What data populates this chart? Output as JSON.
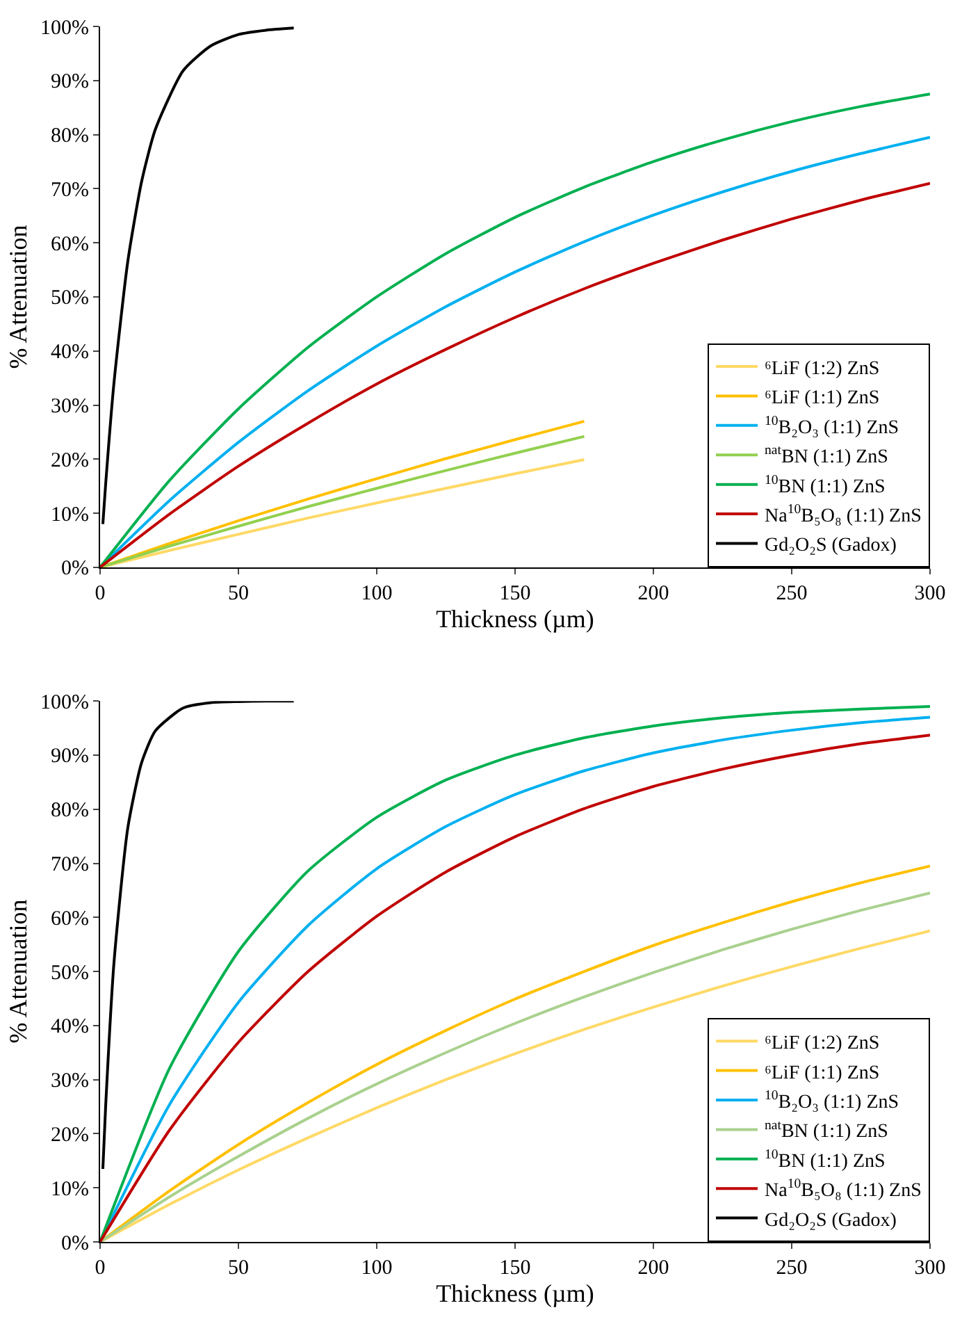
{
  "chart_data": [
    {
      "type": "line",
      "xlabel": "Thickness (µm)",
      "ylabel": "% Attenuation",
      "xlim": [
        0,
        300
      ],
      "xticks": [
        0,
        50,
        100,
        150,
        200,
        250,
        300
      ],
      "ylim": [
        0,
        100
      ],
      "yticks": [
        {
          "value": 0,
          "label": "0%"
        },
        {
          "value": 10,
          "label": "10%"
        },
        {
          "value": 20,
          "label": "20%"
        },
        {
          "value": 30,
          "label": "30%"
        },
        {
          "value": 40,
          "label": "40%"
        },
        {
          "value": 50,
          "label": "50%"
        },
        {
          "value": 60,
          "label": "60%"
        },
        {
          "value": 70,
          "label": "70%"
        },
        {
          "value": 80,
          "label": "80%"
        },
        {
          "value": 90,
          "label": "90%"
        },
        {
          "value": 100,
          "label": "100%"
        }
      ],
      "legend": "bottom right",
      "marker": "none",
      "line_style": "solid",
      "x": [
        0,
        25,
        50,
        75,
        100,
        125,
        150,
        175,
        200,
        225,
        250,
        275,
        300
      ],
      "series": [
        {
          "name": "⁶LiF (1:2) ZnS",
          "color": "#ffd966",
          "values": [
            0,
            3.1,
            6.1,
            9.1,
            11.9,
            14.6,
            17.3,
            19.9,
            null,
            null,
            null,
            null,
            null
          ]
        },
        {
          "name": "⁶LiF (1:1) ZnS",
          "color": "#ffc000",
          "values": [
            0,
            4.4,
            8.6,
            12.6,
            16.4,
            20.1,
            23.6,
            27,
            null,
            null,
            null,
            null,
            null
          ]
        },
        {
          "name": "$^{10}$B₂O₃ (1:1) ZnS",
          "color": "#00b0f0",
          "values": [
            0,
            12.3,
            23.1,
            32.6,
            40.9,
            48.2,
            54.6,
            60.2,
            65.1,
            69.4,
            73.2,
            76.5,
            79.5
          ]
        },
        {
          "name": "$^{nat}$BN (1:1) ZnS",
          "color": "#92d050",
          "values": [
            0,
            3.9,
            7.6,
            11.2,
            14.6,
            17.9,
            21.1,
            24.2,
            null,
            null,
            null,
            null,
            null
          ]
        },
        {
          "name": "$^{10}$BN (1:1) ZnS",
          "color": "#00b050",
          "values": [
            0,
            16,
            29.3,
            40.6,
            50,
            58,
            64.7,
            70.3,
            75,
            79,
            82.4,
            85.2,
            87.5
          ]
        },
        {
          "name": "Na$^{10}$B₅O₈ (1:1) ZnS",
          "color": "#c00000",
          "values": [
            0,
            9.8,
            18.7,
            26.6,
            33.9,
            40.3,
            46.2,
            51.5,
            56.2,
            60.5,
            64.4,
            67.9,
            71
          ]
        },
        {
          "name": "Gd₂O₂S (Gadox)",
          "color": "#000000",
          "x": [
            1,
            2,
            5,
            10,
            15,
            20,
            30,
            40,
            50,
            60,
            70
          ],
          "values": [
            8,
            15.3,
            34,
            56.5,
            71.3,
            81,
            91.8,
            96.4,
            98.5,
            99.3,
            99.7
          ]
        }
      ]
    },
    {
      "type": "line",
      "xlabel": "Thickness (µm)",
      "ylabel": "% Attenuation",
      "xlim": [
        0,
        300
      ],
      "xticks": [
        0,
        50,
        100,
        150,
        200,
        250,
        300
      ],
      "ylim": [
        0,
        100
      ],
      "yticks": [
        {
          "value": 0,
          "label": "0%"
        },
        {
          "value": 10,
          "label": "10%"
        },
        {
          "value": 20,
          "label": "20%"
        },
        {
          "value": 30,
          "label": "30%"
        },
        {
          "value": 40,
          "label": "40%"
        },
        {
          "value": 50,
          "label": "50%"
        },
        {
          "value": 60,
          "label": "60%"
        },
        {
          "value": 70,
          "label": "70%"
        },
        {
          "value": 80,
          "label": "80%"
        },
        {
          "value": 90,
          "label": "90%"
        },
        {
          "value": 100,
          "label": "100%"
        }
      ],
      "legend": "bottom right",
      "marker": "none",
      "line_style": "solid",
      "x": [
        0,
        25,
        50,
        75,
        100,
        125,
        150,
        175,
        200,
        225,
        250,
        275,
        300
      ],
      "series": [
        {
          "name": "⁶LiF (1:2) ZnS",
          "color": "#ffd966",
          "values": [
            0,
            6.9,
            13.3,
            19.2,
            24.8,
            30,
            34.8,
            39.3,
            43.4,
            47.3,
            50.9,
            54.3,
            57.5
          ]
        },
        {
          "name": "⁶LiF (1:1) ZnS",
          "color": "#ffc000",
          "values": [
            0,
            9.4,
            18,
            25.7,
            32.8,
            39.1,
            44.9,
            50,
            54.8,
            59,
            62.9,
            66.4,
            69.5
          ]
        },
        {
          "name": "$^{10}$B₂O₃ (1:1) ZnS",
          "color": "#00b0f0",
          "values": [
            0,
            25.3,
            44.3,
            58.4,
            69,
            76.8,
            82.7,
            87.1,
            90.4,
            92.8,
            94.6,
            96,
            97
          ]
        },
        {
          "name": "$^{nat}$BN (1:1) ZnS",
          "color": "#a9d18e",
          "values": [
            0,
            8.3,
            15.8,
            22.8,
            29.2,
            35,
            40.4,
            45.3,
            49.8,
            54,
            57.8,
            61.3,
            64.5
          ]
        },
        {
          "name": "$^{10}$BN (1:1) ZnS",
          "color": "#00b050",
          "values": [
            0,
            32,
            53.7,
            68.5,
            78.5,
            85.4,
            90,
            93.2,
            95.4,
            96.9,
            97.9,
            98.5,
            99
          ]
        },
        {
          "name": "Na$^{10}$B₅O₈ (1:1) ZnS",
          "color": "#c00000",
          "values": [
            0,
            20.6,
            36.9,
            49.9,
            60.2,
            68.4,
            74.9,
            80.1,
            84.2,
            87.4,
            90,
            92.1,
            93.7
          ]
        },
        {
          "name": "Gd₂O₂S (Gadox)",
          "color": "#000000",
          "x": [
            1,
            2,
            5,
            10,
            15,
            20,
            30,
            40,
            50,
            60,
            70
          ],
          "values": [
            13.5,
            25,
            51.5,
            76.5,
            88.6,
            94.5,
            98.7,
            99.7,
            99.9,
            100,
            100
          ]
        }
      ]
    }
  ]
}
